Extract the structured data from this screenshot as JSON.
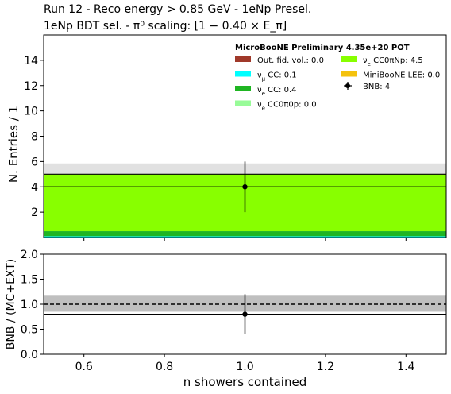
{
  "title_line1": "Run 12 - Reco energy > 0.85 GeV - 1eNp Presel.",
  "title_line2": "1eNp BDT sel. - π⁰ scaling: [1 − 0.40 × E_π]",
  "chart_data": [
    {
      "type": "bar",
      "panel": "main",
      "xlabel": "",
      "ylabel": "N. Entries / 1",
      "xlim": [
        0.5,
        1.5
      ],
      "ylim": [
        0,
        16
      ],
      "yticks": [
        "2",
        "4",
        "6",
        "8",
        "10",
        "12",
        "14"
      ],
      "bin": [
        0.5,
        1.5
      ],
      "stack": [
        {
          "name": "Out. fid. vol.: 0.0",
          "value": 0.0,
          "color": "#a0392a"
        },
        {
          "name": "ν_μ CC: 0.1",
          "value": 0.1,
          "color": "#00ffff"
        },
        {
          "name": "ν_e CC: 0.4",
          "value": 0.4,
          "color": "#1fb522"
        },
        {
          "name": "ν_e CC0π0p: 0.0",
          "value": 0.0,
          "color": "#98fb98"
        },
        {
          "name": "ν_e CC0πNp: 4.5",
          "value": 4.5,
          "color": "#88ff00"
        },
        {
          "name": "MiniBooNE LEE: 0.0",
          "value": 0.0,
          "color": "#f4c20d"
        }
      ],
      "mc_total": 5.0,
      "mc_err_band": [
        4.25,
        5.85
      ],
      "data_line": 4.0,
      "data_points": [
        {
          "x": 1.0,
          "y": 4.0,
          "yerr": 2.0,
          "label": "BNB: 4"
        }
      ],
      "legend_header": "MicroBooNE Preliminary 4.35e+20 POT",
      "legend_placement": "top-right"
    },
    {
      "type": "ratio",
      "panel": "ratio",
      "xlabel": "n showers contained",
      "ylabel": "BNB / (MC+EXT)",
      "xlim": [
        0.5,
        1.5
      ],
      "ylim": [
        0,
        2
      ],
      "xticks": [
        "0.6",
        "0.8",
        "1.0",
        "1.2",
        "1.4"
      ],
      "yticks": [
        "0.0",
        "0.5",
        "1.0",
        "1.5",
        "2.0"
      ],
      "err_band": [
        0.85,
        1.17
      ],
      "reference": 1.0,
      "ratio_line": 0.8,
      "points": [
        {
          "x": 1.0,
          "y": 0.8,
          "yerr": 0.4
        }
      ]
    }
  ]
}
